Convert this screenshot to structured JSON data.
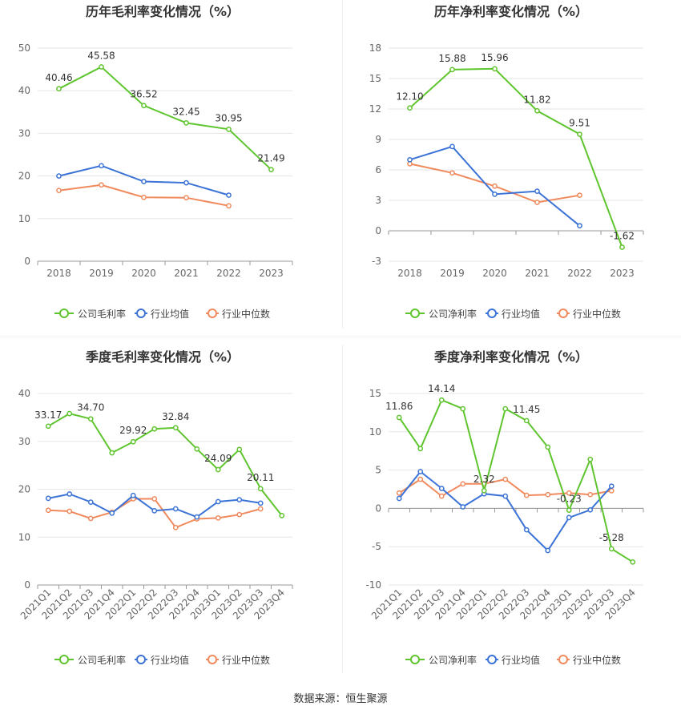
{
  "colors": {
    "company": "#5fc52e",
    "avg": "#3b73d6",
    "median": "#f08a5d"
  },
  "source_text": "数据来源：恒生聚源",
  "chart_data": [
    {
      "type": "line",
      "title": "历年毛利率变化情况（%）",
      "categories": [
        "2018",
        "2019",
        "2020",
        "2021",
        "2022",
        "2023"
      ],
      "ylim": [
        0,
        50
      ],
      "yticks": [
        0,
        10,
        20,
        30,
        40,
        50
      ],
      "grid": true,
      "legend_position": "bottom",
      "series": [
        {
          "name": "公司毛利率",
          "color_key": "company",
          "values": [
            40.46,
            45.58,
            36.52,
            32.45,
            30.95,
            21.49
          ],
          "labels": [
            "40.46",
            "45.58",
            "36.52",
            "32.45",
            "30.95",
            "21.49"
          ]
        },
        {
          "name": "行业均值",
          "color_key": "avg",
          "values": [
            20.0,
            22.4,
            18.7,
            18.4,
            15.5,
            null
          ],
          "labels": []
        },
        {
          "name": "行业中位数",
          "color_key": "median",
          "values": [
            16.6,
            17.9,
            15.0,
            14.9,
            13.0,
            null
          ],
          "labels": []
        }
      ]
    },
    {
      "type": "line",
      "title": "历年净利率变化情况（%）",
      "categories": [
        "2018",
        "2019",
        "2020",
        "2021",
        "2022",
        "2023"
      ],
      "ylim": [
        -3,
        18
      ],
      "yticks": [
        -3,
        0,
        3,
        6,
        9,
        12,
        15,
        18
      ],
      "grid": true,
      "legend_position": "bottom",
      "series": [
        {
          "name": "公司净利率",
          "color_key": "company",
          "values": [
            12.1,
            15.88,
            15.96,
            11.82,
            9.51,
            -1.62
          ],
          "labels": [
            "12.10",
            "15.88",
            "15.96",
            "11.82",
            "9.51",
            "-1.62"
          ]
        },
        {
          "name": "行业均值",
          "color_key": "avg",
          "values": [
            7.0,
            8.3,
            3.6,
            3.9,
            0.5,
            null
          ],
          "labels": []
        },
        {
          "name": "行业中位数",
          "color_key": "median",
          "values": [
            6.6,
            5.7,
            4.4,
            2.8,
            3.5,
            null
          ],
          "labels": []
        }
      ]
    },
    {
      "type": "line",
      "title": "季度毛利率变化情况（%）",
      "categories": [
        "2021Q1",
        "2021Q2",
        "2021Q3",
        "2021Q4",
        "2022Q1",
        "2022Q2",
        "2022Q3",
        "2022Q4",
        "2023Q1",
        "2023Q2",
        "2023Q3",
        "2023Q4"
      ],
      "ylim": [
        0,
        40
      ],
      "yticks": [
        0,
        10,
        20,
        30,
        40
      ],
      "grid": true,
      "rotate_ticks": true,
      "legend_position": "bottom",
      "series": [
        {
          "name": "公司毛利率",
          "color_key": "company",
          "values": [
            33.17,
            35.8,
            34.7,
            27.6,
            29.92,
            32.6,
            32.84,
            28.4,
            24.09,
            28.3,
            20.11,
            14.5
          ],
          "labels": [
            "33.17",
            "",
            "34.70",
            "",
            "29.92",
            "",
            "32.84",
            "",
            "24.09",
            "",
            "20.11",
            ""
          ]
        },
        {
          "name": "行业均值",
          "color_key": "avg",
          "values": [
            18.1,
            19.0,
            17.3,
            15.0,
            18.7,
            15.5,
            15.9,
            14.2,
            17.4,
            17.8,
            17.1,
            null
          ],
          "labels": []
        },
        {
          "name": "行业中位数",
          "color_key": "median",
          "values": [
            15.6,
            15.4,
            13.9,
            15.2,
            18.0,
            18.0,
            12.0,
            13.8,
            14.0,
            14.7,
            15.9,
            null
          ],
          "labels": []
        }
      ]
    },
    {
      "type": "line",
      "title": "季度净利率变化情况（%）",
      "categories": [
        "2021Q1",
        "2021Q2",
        "2021Q3",
        "2021Q4",
        "2022Q1",
        "2022Q2",
        "2022Q3",
        "2022Q4",
        "2023Q1",
        "2023Q2",
        "2023Q3",
        "2023Q4"
      ],
      "ylim": [
        -10,
        15
      ],
      "yticks": [
        -10,
        -5,
        0,
        5,
        10,
        15
      ],
      "grid": true,
      "rotate_ticks": true,
      "legend_position": "bottom",
      "series": [
        {
          "name": "公司净利率",
          "color_key": "company",
          "values": [
            11.86,
            7.8,
            14.14,
            13.0,
            2.32,
            13.0,
            11.45,
            8.0,
            -0.23,
            6.4,
            -5.28,
            -7.0
          ],
          "labels": [
            "11.86",
            "",
            "14.14",
            "",
            "2.32",
            "",
            "11.45",
            "",
            "-0.23",
            "",
            "-5.28",
            ""
          ]
        },
        {
          "name": "行业均值",
          "color_key": "avg",
          "values": [
            1.3,
            4.8,
            2.6,
            0.2,
            1.9,
            1.6,
            -2.8,
            -5.5,
            -1.2,
            -0.2,
            2.9,
            null
          ],
          "labels": []
        },
        {
          "name": "行业中位数",
          "color_key": "median",
          "values": [
            2.0,
            3.8,
            1.6,
            3.2,
            3.2,
            3.8,
            1.7,
            1.8,
            2.0,
            1.8,
            2.3,
            null
          ],
          "labels": []
        }
      ]
    }
  ]
}
